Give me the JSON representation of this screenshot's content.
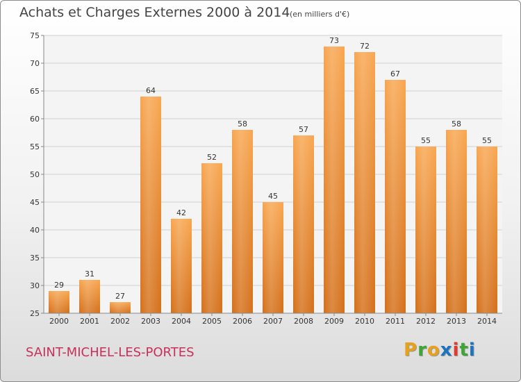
{
  "header": {
    "title": "Achats et Charges Externes 2000 à 2014",
    "unit": "(en milliers d'€)"
  },
  "footer": {
    "town": "SAINT-MICHEL-LES-PORTES",
    "logo_letters": [
      "P",
      "r",
      "o",
      "x",
      "i",
      "t",
      "i"
    ],
    "logo_colors": [
      "#e8a11c",
      "#3fa535",
      "#e8a11c",
      "#1e73be",
      "#e23a2e",
      "#3fa535",
      "#1e73be"
    ]
  },
  "colors": {
    "bar": "#f08a24",
    "grid": "#cfcfcf",
    "axis": "#888888"
  },
  "chart_data": {
    "type": "bar",
    "categories": [
      "2000",
      "2001",
      "2002",
      "2003",
      "2004",
      "2005",
      "2006",
      "2007",
      "2008",
      "2009",
      "2010",
      "2011",
      "2012",
      "2013",
      "2014"
    ],
    "values": [
      29,
      31,
      27,
      64,
      42,
      52,
      58,
      45,
      57,
      73,
      72,
      67,
      55,
      58,
      55
    ],
    "ylim": [
      25,
      75
    ],
    "yticks": [
      25,
      30,
      35,
      40,
      45,
      50,
      55,
      60,
      65,
      70,
      75
    ],
    "grid": true,
    "legend": "none"
  }
}
